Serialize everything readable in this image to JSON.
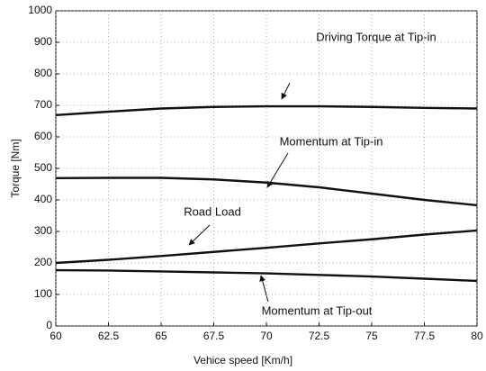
{
  "chart_data": {
    "type": "line",
    "x_label": "Vehice speed [Km/h]",
    "y_label": "Torque [Nm]",
    "x": [
      60,
      62.5,
      65,
      67.5,
      70,
      72.5,
      75,
      77.5,
      80
    ],
    "series": [
      {
        "name": "Driving Torque at Tip-in",
        "color": "#111111",
        "values": [
          669,
          680,
          690,
          695,
          697,
          697,
          695,
          692,
          690
        ]
      },
      {
        "name": "Momentum at Tip-in",
        "color": "#111111",
        "values": [
          469,
          470,
          470,
          465,
          455,
          440,
          420,
          400,
          383
        ]
      },
      {
        "name": "Road Load",
        "color": "#111111",
        "values": [
          200,
          210,
          222,
          235,
          248,
          262,
          275,
          290,
          303
        ]
      },
      {
        "name": "Momentum at Tip-out",
        "color": "#111111",
        "values": [
          177,
          176,
          173,
          170,
          167,
          162,
          157,
          150,
          143
        ]
      }
    ],
    "xlim": [
      60,
      80
    ],
    "ylim": [
      0,
      1000
    ],
    "xticks": [
      60,
      62.5,
      65,
      67.5,
      70,
      72.5,
      75,
      77.5,
      80
    ],
    "yticks": [
      0,
      100,
      200,
      300,
      400,
      500,
      600,
      700,
      800,
      900,
      1000
    ],
    "grid": true
  }
}
